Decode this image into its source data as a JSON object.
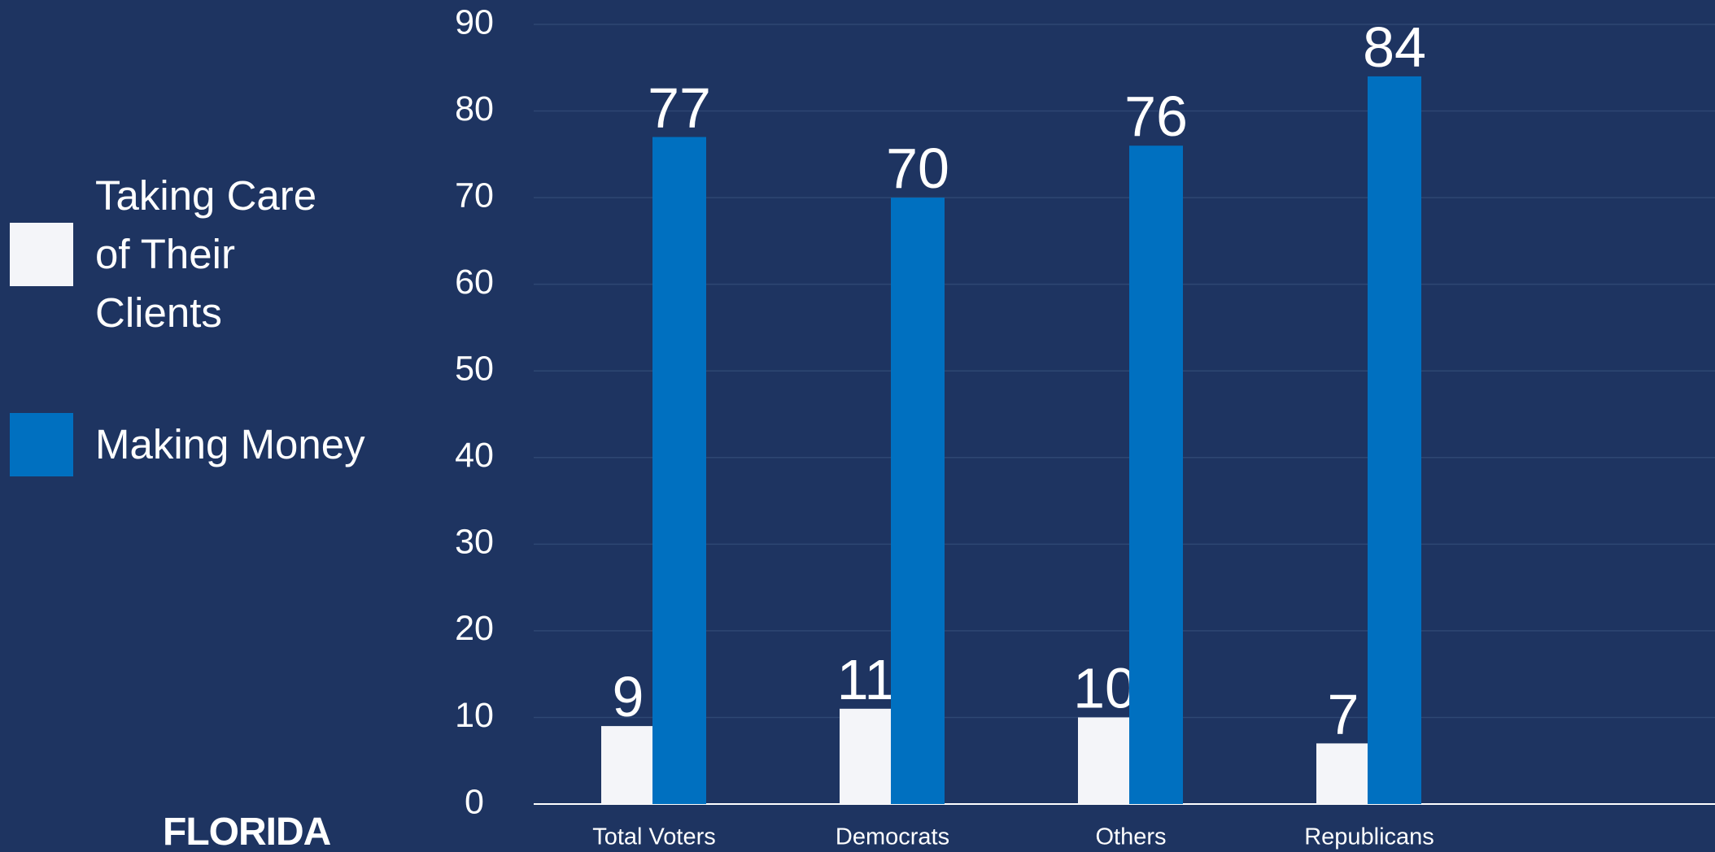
{
  "chart_data": {
    "type": "bar",
    "categories": [
      "Total Voters",
      "Democrats",
      "Others",
      "Republicans"
    ],
    "series": [
      {
        "name": "Taking Care of Their Clients",
        "color": "#f4f5f9",
        "values": [
          9,
          11,
          10,
          7
        ]
      },
      {
        "name": "Making Money",
        "color": "#0070c0",
        "values": [
          77,
          70,
          76,
          84
        ]
      }
    ],
    "ylim": [
      0,
      90
    ],
    "yticks": [
      0,
      10,
      20,
      30,
      40,
      50,
      60,
      70,
      80,
      90
    ],
    "grid": true,
    "legend": "left"
  },
  "logo_text": "FLORIDA"
}
